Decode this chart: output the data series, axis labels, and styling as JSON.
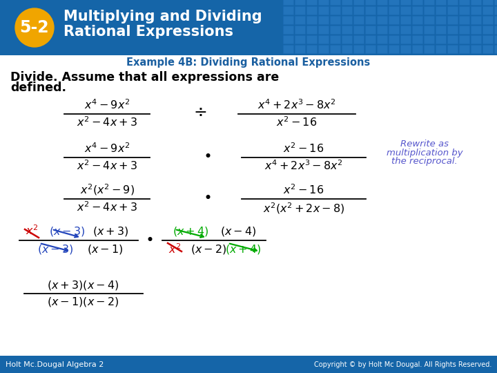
{
  "badge_text": "5-2",
  "badge_color": "#f0a500",
  "header_bg": "#1565a8",
  "tile_color": "#2a7bc4",
  "tile_edge": "#1a6ab8",
  "white": "#ffffff",
  "black": "#000000",
  "dark_blue_text": "#1a5fa0",
  "green": "#00aa00",
  "red": "#cc0000",
  "blue_cancel": "#2244bb",
  "purple_italic": "#5555cc",
  "footer_bg": "#1565a8",
  "footer_left": "Holt Mc.Dougal Algebra 2",
  "footer_right": "Copyright © by Holt Mc Dougal. All Rights Reserved.",
  "title_line1": "Multiplying and Dividing",
  "title_line2": "Rational Expressions",
  "example_label": "Example 4B: Dividing Rational Expressions",
  "intro1": "Divide. Assume that all expressions are",
  "intro2": "defined."
}
